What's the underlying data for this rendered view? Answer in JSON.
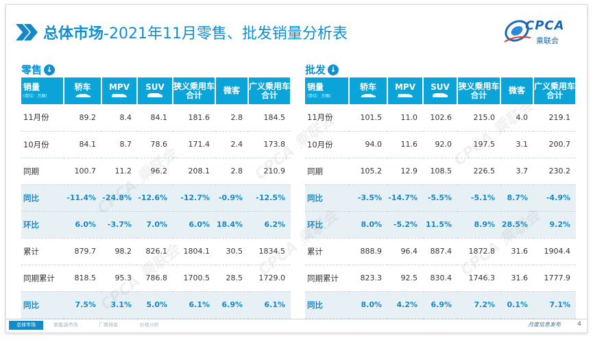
{
  "title": {
    "bold": "总体市场",
    "rest": "-2021年11月零售、批发销量分析表"
  },
  "logo": {
    "text": "CPCA",
    "sub": "乘联会"
  },
  "watermark": "CPCA 乘联会",
  "retail": {
    "label": "零售",
    "arrow": "↓",
    "header": {
      "corner": "销量",
      "unit": "(单位：万辆)",
      "cols": [
        "轿车",
        "MPV",
        "SUV",
        "狭义乘用车\n合计",
        "微客",
        "广义乘用车\n合计"
      ]
    },
    "rows": [
      {
        "label": "11月份",
        "values": [
          "89.2",
          "8.4",
          "84.1",
          "181.6",
          "2.8",
          "184.5"
        ],
        "hl": false
      },
      {
        "label": "10月份",
        "values": [
          "84.1",
          "8.7",
          "78.6",
          "171.4",
          "2.4",
          "173.8"
        ],
        "hl": false
      },
      {
        "label": "同期",
        "values": [
          "100.7",
          "11.2",
          "96.2",
          "208.1",
          "2.8",
          "210.9"
        ],
        "hl": false
      },
      {
        "label": "同比",
        "values": [
          "-11.4%",
          "-24.8%",
          "-12.6%",
          "-12.7%",
          "-0.9%",
          "-12.5%"
        ],
        "hl": true
      },
      {
        "label": "环比",
        "values": [
          "6.0%",
          "-3.7%",
          "7.0%",
          "6.0%",
          "18.4%",
          "6.2%"
        ],
        "hl": true
      },
      {
        "label": "累计",
        "values": [
          "879.7",
          "98.2",
          "826.1",
          "1804.1",
          "30.5",
          "1834.5"
        ],
        "hl": false
      },
      {
        "label": "同期累计",
        "values": [
          "818.5",
          "95.3",
          "786.8",
          "1700.5",
          "28.5",
          "1729.0"
        ],
        "hl": false
      },
      {
        "label": "同比",
        "values": [
          "7.5%",
          "3.1%",
          "5.0%",
          "6.1%",
          "6.9%",
          "6.1%"
        ],
        "hl": true
      }
    ]
  },
  "wholesale": {
    "label": "批发",
    "arrow": "↓",
    "header": {
      "corner": "销量",
      "unit": "(单位：万辆)",
      "cols": [
        "轿车",
        "MPV",
        "SUV",
        "狭义乘用车\n合计",
        "微客",
        "广义乘用车\n合计"
      ]
    },
    "rows": [
      {
        "label": "11月份",
        "values": [
          "101.5",
          "11.0",
          "102.6",
          "215.0",
          "4.0",
          "219.1"
        ],
        "hl": false
      },
      {
        "label": "10月份",
        "values": [
          "94.0",
          "11.6",
          "92.0",
          "197.5",
          "3.1",
          "200.7"
        ],
        "hl": false
      },
      {
        "label": "同期",
        "values": [
          "105.2",
          "12.9",
          "108.5",
          "226.5",
          "3.7",
          "230.2"
        ],
        "hl": false
      },
      {
        "label": "同比",
        "values": [
          "-3.5%",
          "-14.7%",
          "-5.5%",
          "-5.1%",
          "8.7%",
          "-4.9%"
        ],
        "hl": true
      },
      {
        "label": "环比",
        "values": [
          "8.0%",
          "-5.2%",
          "11.5%",
          "8.9%",
          "28.5%",
          "9.2%"
        ],
        "hl": true
      },
      {
        "label": "累计",
        "values": [
          "888.9",
          "96.4",
          "887.4",
          "1872.8",
          "31.6",
          "1904.4"
        ],
        "hl": false
      },
      {
        "label": "同期累计",
        "values": [
          "823.3",
          "92.5",
          "830.4",
          "1746.3",
          "31.6",
          "1777.9"
        ],
        "hl": false
      },
      {
        "label": "同比",
        "values": [
          "8.0%",
          "4.2%",
          "6.9%",
          "7.2%",
          "0.1%",
          "7.1%"
        ],
        "hl": true
      }
    ]
  },
  "footer": {
    "tabs": [
      "总体市场",
      "新能源市场",
      "厂商排名",
      "价格分析"
    ],
    "right": "月度信息发布",
    "page": "4"
  },
  "colors": {
    "accent": "#0f8fd0",
    "header": "#0aa4d8",
    "highlight": "#e7f0f5"
  }
}
